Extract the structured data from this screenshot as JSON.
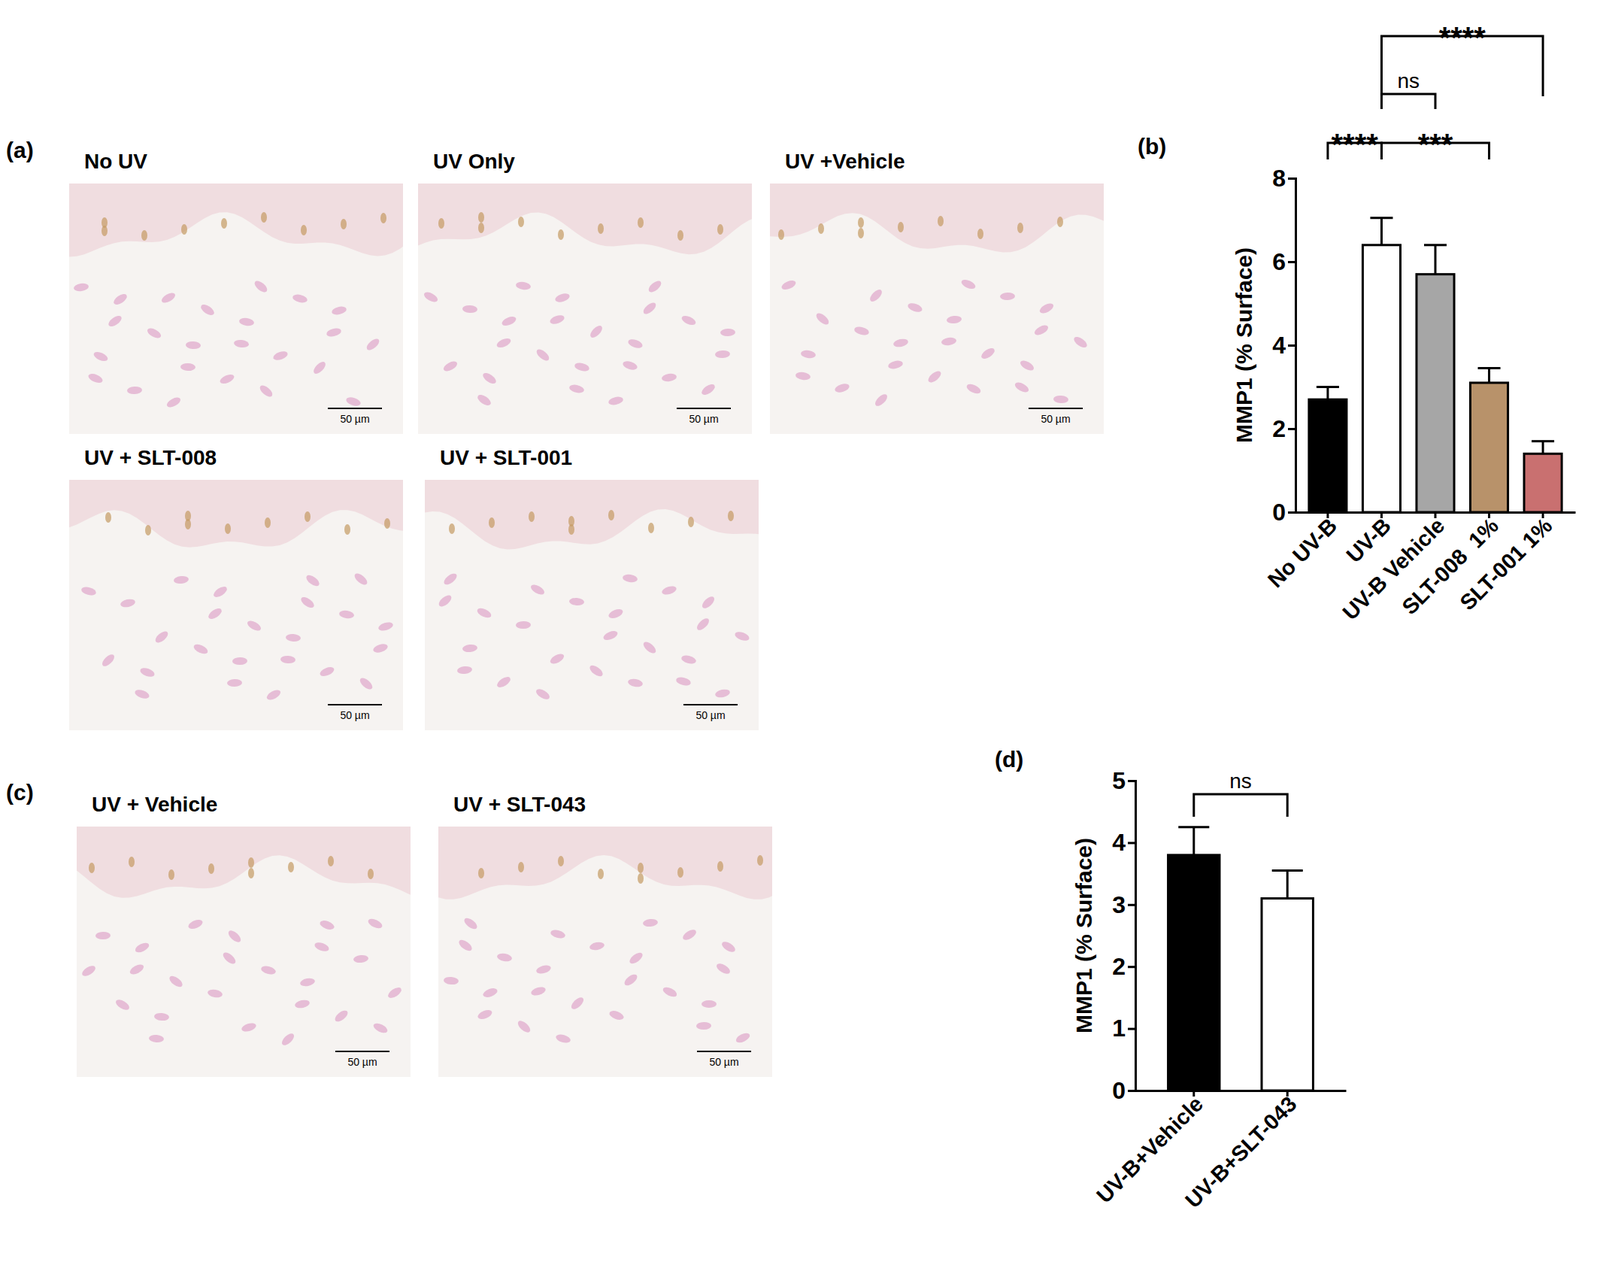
{
  "micrographs": [
    {
      "label": "(a)",
      "images": [
        {
          "title": "No UV",
          "scale_bar": "50 µm"
        },
        {
          "title": "UV Only",
          "scale_bar": "50 µm"
        },
        {
          "title": "UV +Vehicle",
          "scale_bar": "50 µm"
        },
        {
          "title": "UV + SLT-008",
          "scale_bar": "50 µm"
        },
        {
          "title": "UV + SLT-001",
          "scale_bar": "50 µm"
        }
      ]
    },
    {
      "label": "(c)",
      "images": [
        {
          "title": "UV + Vehicle",
          "scale_bar": "50 µm"
        },
        {
          "title": "UV + SLT-043",
          "scale_bar": "50 µm"
        }
      ]
    }
  ],
  "chart_data": [
    {
      "type": "bar",
      "panel": "(b)",
      "y_label": "MMP1 (% Surface)",
      "categories": [
        "No UV-B",
        "UV-B",
        "UV-B Vehicle",
        "SLT-008  1%",
        "SLT-001 1%"
      ],
      "values": [
        2.7,
        6.4,
        5.7,
        3.1,
        1.4
      ],
      "errors": [
        0.3,
        0.65,
        0.7,
        0.35,
        0.3
      ],
      "colors": [
        "#000000",
        "#ffffff",
        "#a6a6a6",
        "#b8926a",
        "#c97070"
      ],
      "ylim": [
        0,
        8
      ],
      "yticks": [
        0,
        2,
        4,
        6,
        8
      ],
      "grid": false,
      "annotations": [
        {
          "from": 0,
          "to": 1,
          "text": "****"
        },
        {
          "from": 1,
          "to": 2,
          "text": "ns"
        },
        {
          "from": 1,
          "to": 3,
          "text": "***"
        },
        {
          "from": 1,
          "to": 4,
          "text": "****"
        }
      ]
    },
    {
      "type": "bar",
      "panel": "(d)",
      "y_label": "MMP1 (% Surface)",
      "categories": [
        "UV-B+Vehicle",
        "UV-B+SLT-043"
      ],
      "values": [
        3.8,
        3.1
      ],
      "errors": [
        0.45,
        0.45
      ],
      "colors": [
        "#000000",
        "#ffffff"
      ],
      "ylim": [
        0,
        5
      ],
      "yticks": [
        0,
        1,
        2,
        3,
        4,
        5
      ],
      "grid": false,
      "annotations": [
        {
          "from": 0,
          "to": 1,
          "text": "ns"
        }
      ]
    }
  ]
}
